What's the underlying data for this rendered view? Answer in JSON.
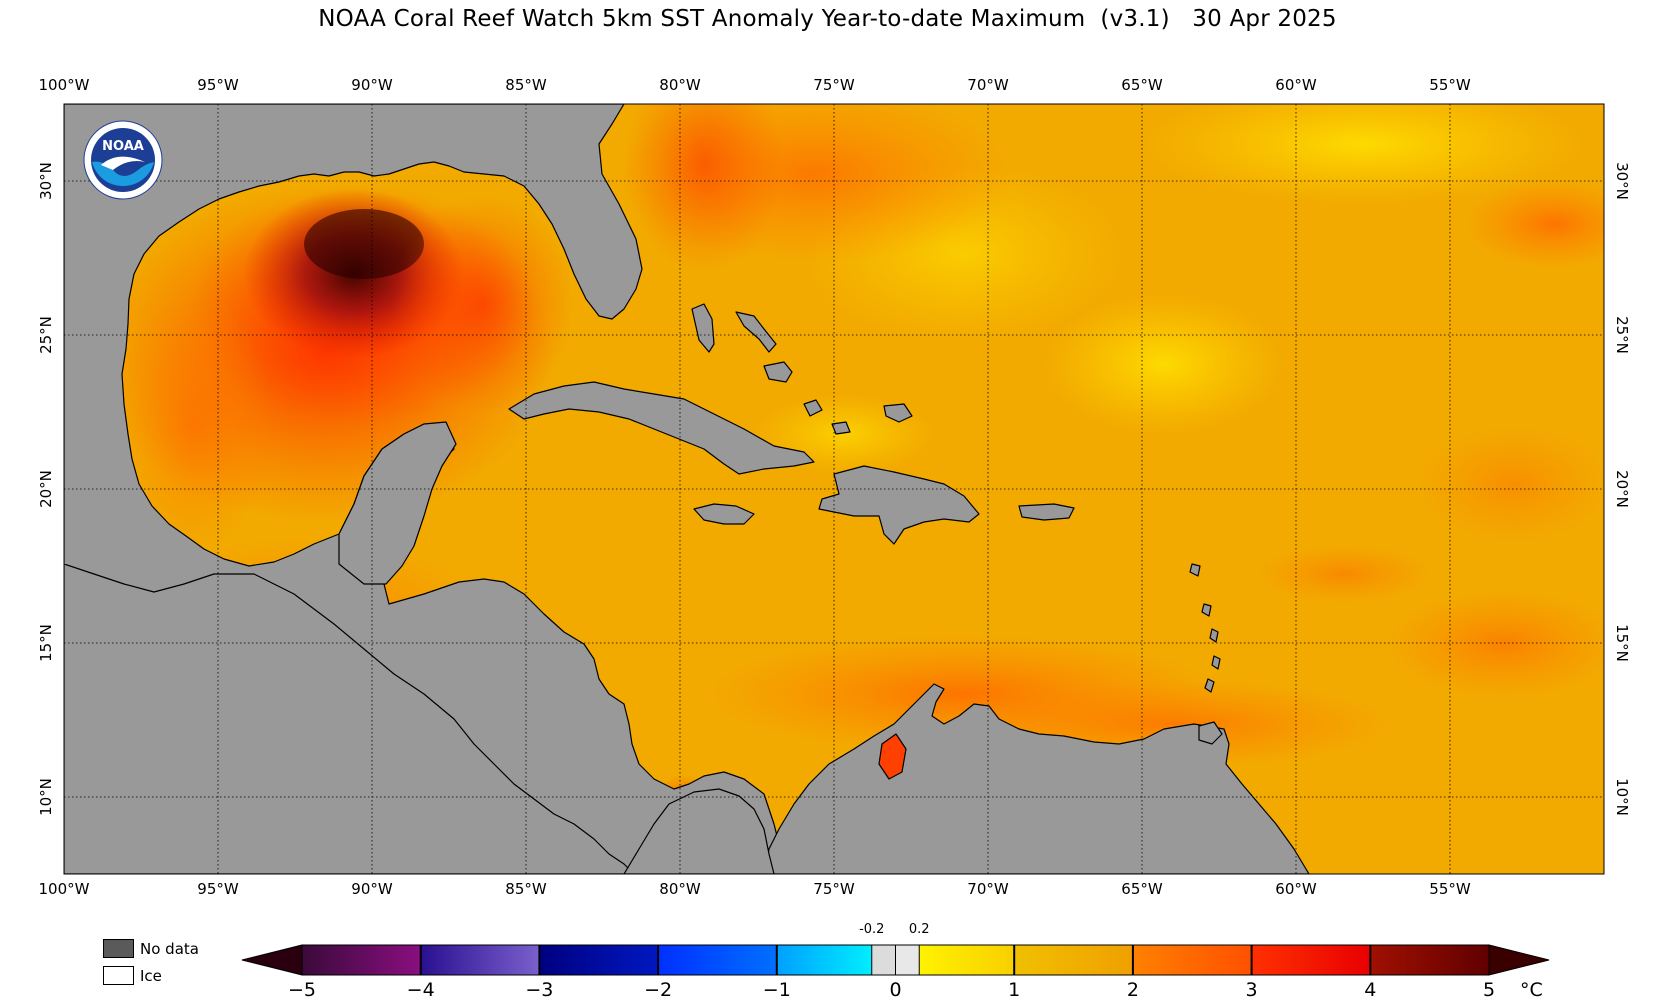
{
  "title": "NOAA Coral Reef Watch 5km SST Anomaly Year-to-date Maximum  (v3.1)   30 Apr 2025",
  "map": {
    "lon_min": -100,
    "lon_max": -50,
    "lat_min": 7.5,
    "lat_max": 32.5,
    "lon_ticks": [
      {
        "value": -100,
        "label": "100°W"
      },
      {
        "value": -95,
        "label": "95°W"
      },
      {
        "value": -90,
        "label": "90°W"
      },
      {
        "value": -85,
        "label": "85°W"
      },
      {
        "value": -80,
        "label": "80°W"
      },
      {
        "value": -75,
        "label": "75°W"
      },
      {
        "value": -70,
        "label": "70°W"
      },
      {
        "value": -65,
        "label": "65°W"
      },
      {
        "value": -60,
        "label": "60°W"
      },
      {
        "value": -55,
        "label": "55°W"
      }
    ],
    "lat_ticks": [
      {
        "value": 30,
        "label": "30°N"
      },
      {
        "value": 25,
        "label": "25°N"
      },
      {
        "value": 20,
        "label": "20°N"
      },
      {
        "value": 15,
        "label": "15°N"
      },
      {
        "value": 10,
        "label": "10°N"
      }
    ],
    "colors": {
      "ocean_base": "#f2aa00",
      "land": "#999999",
      "gridline": "#000000"
    }
  },
  "logo": {
    "text": "NOAA",
    "colors": {
      "navy": "#1c3f95",
      "sky": "#1b9be0",
      "white": "#ffffff"
    }
  },
  "legend": {
    "no_data": {
      "label": "No data",
      "color": "#5a5a5a"
    },
    "ice": {
      "label": "Ice",
      "color": "#ffffff"
    }
  },
  "colorbar": {
    "unit": "°C",
    "ticks": [
      {
        "value": -5,
        "label": "−5"
      },
      {
        "value": -4,
        "label": "−4"
      },
      {
        "value": -3,
        "label": "−3"
      },
      {
        "value": -2,
        "label": "−2"
      },
      {
        "value": -1,
        "label": "−1"
      },
      {
        "value": 0,
        "label": "0"
      },
      {
        "value": 1,
        "label": "1"
      },
      {
        "value": 2,
        "label": "2"
      },
      {
        "value": 3,
        "label": "3"
      },
      {
        "value": 4,
        "label": "4"
      },
      {
        "value": 5,
        "label": "5"
      }
    ],
    "small_ticks": [
      {
        "value": -0.2,
        "label": "-0.2"
      },
      {
        "value": 0.2,
        "label": "0.2"
      }
    ],
    "segments": [
      {
        "from": -5,
        "to": -4,
        "c1": "#3a0a3a",
        "c2": "#8a0e80"
      },
      {
        "from": -4,
        "to": -3,
        "c1": "#2a1090",
        "c2": "#7a60cc"
      },
      {
        "from": -3,
        "to": -2,
        "c1": "#000080",
        "c2": "#0018c0"
      },
      {
        "from": -2,
        "to": -1,
        "c1": "#0030ff",
        "c2": "#0070ff"
      },
      {
        "from": -1,
        "to": -0.2,
        "c1": "#00a0ff",
        "c2": "#00eeff"
      },
      {
        "from": -0.2,
        "to": 0,
        "c1": "#dcdcdc",
        "c2": "#dcdcdc"
      },
      {
        "from": 0,
        "to": 0.2,
        "c1": "#e8e8e8",
        "c2": "#e8e8e8"
      },
      {
        "from": 0.2,
        "to": 1,
        "c1": "#fff200",
        "c2": "#f8d000"
      },
      {
        "from": 1,
        "to": 2,
        "c1": "#f0c000",
        "c2": "#f0a000"
      },
      {
        "from": 2,
        "to": 3,
        "c1": "#ff8000",
        "c2": "#ff5000"
      },
      {
        "from": 3,
        "to": 4,
        "c1": "#ff3000",
        "c2": "#e80000"
      },
      {
        "from": 4,
        "to": 5,
        "c1": "#a01000",
        "c2": "#600000"
      }
    ],
    "arrow_low_color": "#2a0010",
    "arrow_high_color": "#3a0000"
  }
}
